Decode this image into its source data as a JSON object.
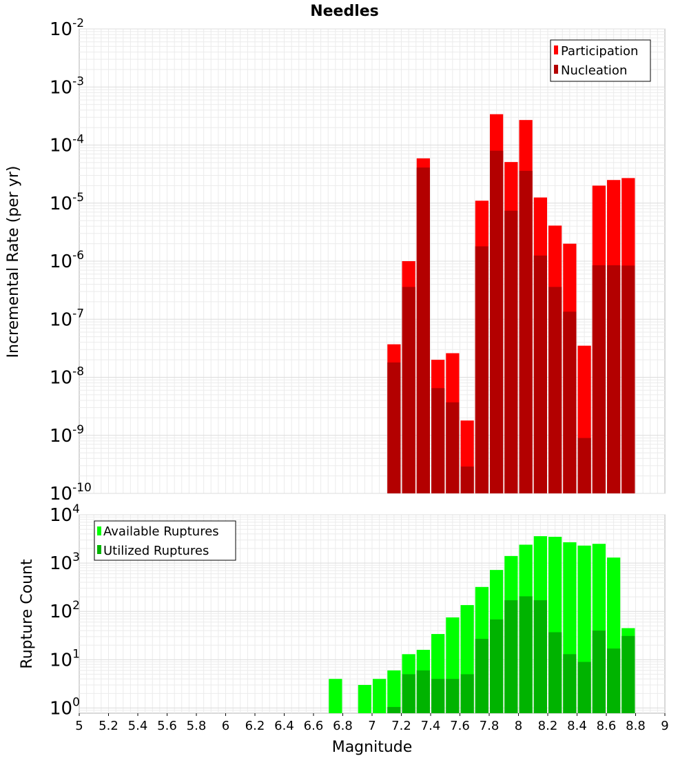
{
  "chart_data": [
    {
      "type": "bar",
      "title": "Needles",
      "ylabel": "Incremental Rate (per yr)",
      "xlabel": "",
      "y_scale": "log",
      "ylim": [
        1e-10,
        0.01
      ],
      "xlim": [
        5,
        9
      ],
      "grid": true,
      "legend_position": "top-right",
      "y_ticks": [
        {
          "base": "10",
          "exp": "-2"
        },
        {
          "base": "10",
          "exp": "-3"
        },
        {
          "base": "10",
          "exp": "-4"
        },
        {
          "base": "10",
          "exp": "-5"
        },
        {
          "base": "10",
          "exp": "-6"
        },
        {
          "base": "10",
          "exp": "-7"
        },
        {
          "base": "10",
          "exp": "-8"
        },
        {
          "base": "10",
          "exp": "-9"
        },
        {
          "base": "10",
          "exp": "-10"
        }
      ],
      "x": [
        7.15,
        7.25,
        7.35,
        7.45,
        7.55,
        7.65,
        7.75,
        7.85,
        7.95,
        8.05,
        8.15,
        8.25,
        8.35,
        8.45,
        8.55,
        8.65,
        8.75
      ],
      "series": [
        {
          "name": "Participation",
          "color": "#ff0000",
          "values": [
            3.7e-08,
            1e-06,
            5.9e-05,
            2e-08,
            2.6e-08,
            1.8e-09,
            1.1e-05,
            0.00034,
            5.1e-05,
            0.00027,
            1.25e-05,
            4.1e-06,
            2e-06,
            3.5e-08,
            2e-05,
            2.5e-05,
            2.7e-05
          ]
        },
        {
          "name": "Nucleation",
          "color": "#b30000",
          "values": [
            1.8e-08,
            3.6e-07,
            4.1e-05,
            6.5e-09,
            3.7e-09,
            2.9e-10,
            1.8e-06,
            8e-05,
            7.4e-06,
            3.6e-05,
            1.25e-06,
            3.6e-07,
            1.35e-07,
            9e-10,
            8.5e-07,
            8.5e-07,
            8.4e-07
          ]
        }
      ]
    },
    {
      "type": "bar",
      "title": "",
      "ylabel": "Rupture Count",
      "xlabel": "Magnitude",
      "y_scale": "log",
      "ylim": [
        0.78,
        10000
      ],
      "xlim": [
        5,
        9
      ],
      "grid": true,
      "legend_position": "top-left",
      "y_ticks": [
        {
          "base": "10",
          "exp": "4"
        },
        {
          "base": "10",
          "exp": "3"
        },
        {
          "base": "10",
          "exp": "2"
        },
        {
          "base": "10",
          "exp": "1"
        },
        {
          "base": "10",
          "exp": "0"
        }
      ],
      "x_ticks": [
        "5",
        "5.2",
        "5.4",
        "5.6",
        "5.8",
        "6",
        "6.2",
        "6.4",
        "6.6",
        "6.8",
        "7",
        "7.2",
        "7.4",
        "7.6",
        "7.8",
        "8",
        "8.2",
        "8.4",
        "8.6",
        "8.8",
        "9"
      ],
      "x": [
        6.75,
        6.95,
        7.05,
        7.15,
        7.25,
        7.35,
        7.45,
        7.55,
        7.65,
        7.75,
        7.85,
        7.95,
        8.05,
        8.15,
        8.25,
        8.35,
        8.45,
        8.55,
        8.65,
        8.75
      ],
      "series": [
        {
          "name": "Available Ruptures",
          "color": "#00ff00",
          "values": [
            4,
            3,
            4,
            6,
            13,
            16,
            34,
            75,
            135,
            320,
            720,
            1400,
            2400,
            3600,
            3500,
            2700,
            2300,
            2500,
            1300,
            45
          ]
        },
        {
          "name": "Utilized Ruptures",
          "color": "#00b300",
          "values": [
            null,
            null,
            null,
            1.05,
            5,
            6,
            4,
            4,
            5,
            27,
            68,
            170,
            205,
            170,
            37,
            13,
            9,
            40,
            17,
            31
          ]
        }
      ]
    }
  ]
}
